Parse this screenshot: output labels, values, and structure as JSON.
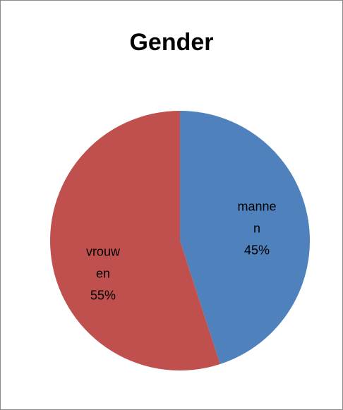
{
  "chart_data": {
    "type": "pie",
    "title": "Gender",
    "categories": [
      "mannen",
      "vrouwen"
    ],
    "values": [
      45,
      55
    ],
    "value_labels": [
      "45%",
      "55%"
    ],
    "colors": [
      "#4f81bd",
      "#c0504d"
    ]
  }
}
